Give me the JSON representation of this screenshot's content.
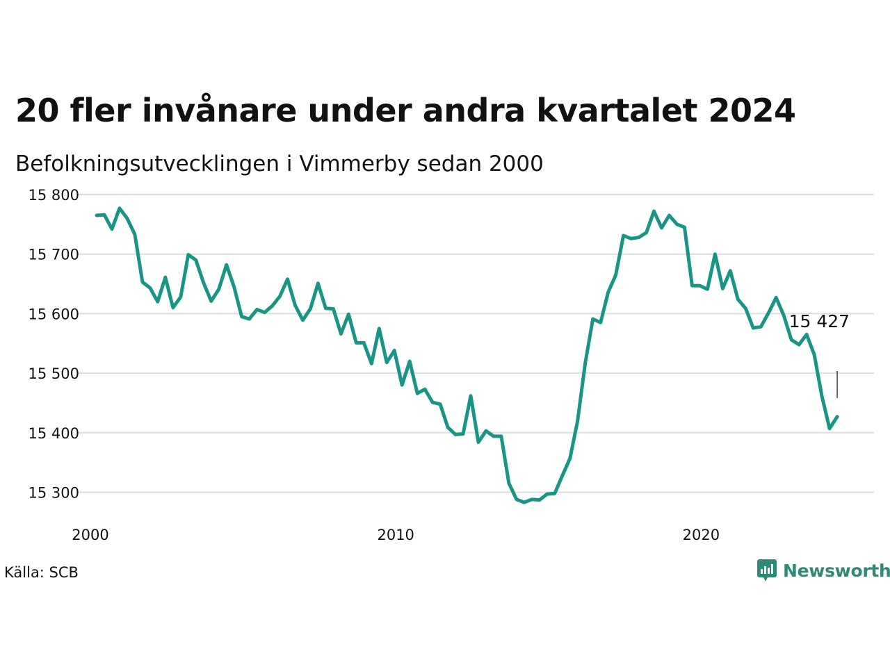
{
  "title": "20 fler invånare under andra kvartalet 2024",
  "subtitle": "Befolkningsutvecklingen i Vimmerby sedan 2000",
  "source": "Källa: SCB",
  "brand": "Newsworthy",
  "colors": {
    "line": "#1a9585",
    "grid": "#dddddd",
    "brand": "#2d8a76"
  },
  "chart_data": {
    "type": "line",
    "title": "20 fler invånare under andra kvartalet 2024",
    "subtitle": "Befolkningsutvecklingen i Vimmerby sedan 2000",
    "xlabel": "",
    "ylabel": "",
    "xlim": [
      2000,
      2025
    ],
    "ylim": [
      15250,
      15800
    ],
    "grid": true,
    "x_ticks": [
      2000,
      2010,
      2020
    ],
    "x_tick_labels": [
      "2000",
      "2010",
      "2020"
    ],
    "y_ticks": [
      15300,
      15400,
      15500,
      15600,
      15700,
      15800
    ],
    "y_tick_labels": [
      "15 300",
      "15 400",
      "15 500",
      "15 600",
      "15 700",
      "15 800"
    ],
    "annotation": {
      "text": "15 427",
      "x": 2024.25,
      "y": 15427
    },
    "series": [
      {
        "x": [
          2000.0,
          2000.25,
          2000.5,
          2000.75,
          2001.0,
          2001.25,
          2001.5,
          2001.75,
          2002.0,
          2002.25,
          2002.5,
          2002.75,
          2003.0,
          2003.25,
          2003.5,
          2003.75,
          2004.0,
          2004.25,
          2004.5,
          2004.75,
          2005.0,
          2005.25,
          2005.5,
          2005.75,
          2006.0,
          2006.25,
          2006.5,
          2006.75,
          2007.0,
          2007.25,
          2007.5,
          2007.75,
          2008.0,
          2008.25,
          2008.5,
          2008.75,
          2009.0,
          2009.25,
          2009.5,
          2009.75,
          2010.0,
          2010.25,
          2010.5,
          2010.75,
          2011.0,
          2011.25,
          2011.5,
          2011.75,
          2012.0,
          2012.25,
          2012.5,
          2012.75,
          2013.0,
          2013.25,
          2013.5,
          2013.75,
          2014.0,
          2014.25,
          2014.5,
          2014.75,
          2015.0,
          2015.25,
          2015.5,
          2015.75,
          2016.0,
          2016.25,
          2016.5,
          2016.75,
          2017.0,
          2017.25,
          2017.5,
          2017.75,
          2018.0,
          2018.25,
          2018.5,
          2018.75,
          2019.0,
          2019.25,
          2019.5,
          2019.75,
          2020.0,
          2020.25,
          2020.5,
          2020.75,
          2021.0,
          2021.25,
          2021.5,
          2021.75,
          2022.0,
          2022.25,
          2022.5,
          2022.75,
          2023.0,
          2023.25,
          2023.5,
          2023.75,
          2024.0,
          2024.25
        ],
        "values": [
          15765,
          15766,
          15742,
          15777,
          15760,
          15733,
          15653,
          15643,
          15620,
          15661,
          15610,
          15628,
          15699,
          15690,
          15652,
          15621,
          15641,
          15682,
          15645,
          15595,
          15591,
          15607,
          15602,
          15613,
          15629,
          15658,
          15614,
          15589,
          15608,
          15651,
          15609,
          15608,
          15566,
          15599,
          15551,
          15551,
          15516,
          15575,
          15518,
          15538,
          15480,
          15520,
          15466,
          15473,
          15451,
          15448,
          15409,
          15397,
          15398,
          15462,
          15384,
          15403,
          15394,
          15394,
          15315,
          15288,
          15283,
          15288,
          15287,
          15297,
          15298,
          15328,
          15357,
          15420,
          15517,
          15591,
          15585,
          15636,
          15665,
          15731,
          15726,
          15728,
          15736,
          15772,
          15744,
          15765,
          15750,
          15745,
          15647,
          15647,
          15641,
          15700,
          15642,
          15672,
          15624,
          15609,
          15576,
          15578,
          15601,
          15627,
          15597,
          15556,
          15548,
          15565,
          15531,
          15461,
          15407,
          15427
        ]
      }
    ]
  }
}
